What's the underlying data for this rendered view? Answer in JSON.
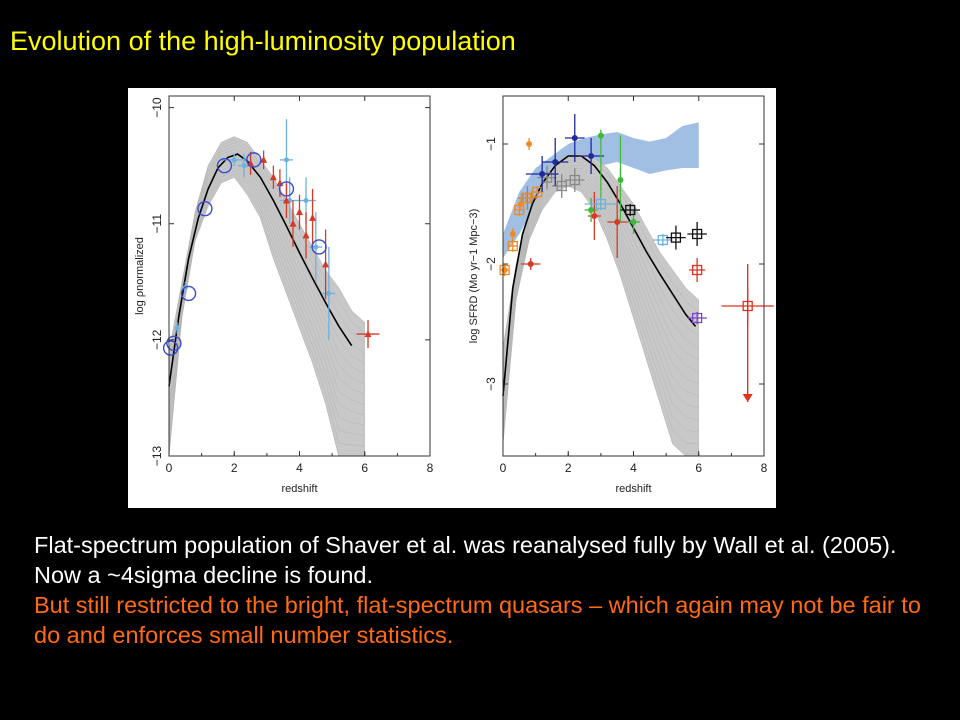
{
  "slide": {
    "title": "Evolution of the high-luminosity population",
    "caption_white": "Flat-spectrum population of Shaver et al. was reanalysed fully by Wall et al. (2005). Now a ~4sigma decline is found.",
    "caption_orange": "But still restricted to the bright, flat-spectrum quasars – which again may not be fair to do and enforces small number statistics."
  },
  "chart_data": [
    {
      "type": "line",
      "xlabel": "redshift",
      "ylabel": "log ρnormalized",
      "xlim": [
        0,
        8
      ],
      "ylim": [
        -13,
        -9.9
      ],
      "xticks": [
        "0",
        "2",
        "4",
        "6",
        "8"
      ],
      "yticks": [
        "−10",
        "−11",
        "−12",
        "−13"
      ],
      "ytick_values": [
        -10,
        -11,
        -12,
        -13
      ],
      "colors": {
        "model": "#000000",
        "band": "#c8c8c8",
        "circles": "#3b4bd0",
        "red": "#d43a28",
        "lightblue": "#6bb2df"
      },
      "band_upper": {
        "x": [
          0,
          0.4,
          0.8,
          1.2,
          1.6,
          2.0,
          2.4,
          2.8,
          3.2,
          3.6,
          4.0,
          4.4,
          4.8,
          5.2,
          5.6,
          6.0
        ],
        "y": [
          -12.1,
          -11.5,
          -10.9,
          -10.5,
          -10.3,
          -10.25,
          -10.3,
          -10.45,
          -10.6,
          -10.8,
          -11.0,
          -11.2,
          -11.4,
          -11.55,
          -11.75,
          -11.85
        ]
      },
      "band_lower": {
        "x": [
          0,
          0.4,
          0.8,
          1.2,
          1.6,
          2.0,
          2.4,
          2.8,
          3.2,
          3.6,
          4.0,
          4.4,
          4.8,
          5.2,
          5.6,
          6.0
        ],
        "y": [
          -13.0,
          -11.8,
          -11.15,
          -10.85,
          -10.65,
          -10.6,
          -10.75,
          -10.95,
          -11.3,
          -11.6,
          -11.9,
          -12.2,
          -12.55,
          -13.0,
          -13.0,
          -13.0
        ]
      },
      "series": [
        {
          "name": "",
          "x": [
            0,
            0.3,
            0.6,
            0.9,
            1.2,
            1.5,
            1.8,
            2.1,
            2.4,
            2.8,
            3.2,
            3.6,
            4.0,
            4.4,
            4.8,
            5.2,
            5.6
          ],
          "y": [
            -12.4,
            -11.8,
            -11.3,
            -10.95,
            -10.7,
            -10.52,
            -10.43,
            -10.4,
            -10.46,
            -10.6,
            -10.8,
            -11.02,
            -11.25,
            -11.47,
            -11.68,
            -11.88,
            -12.05
          ]
        }
      ],
      "circles": {
        "x": [
          0.05,
          0.15,
          0.6,
          1.1,
          1.7,
          2.6,
          3.6,
          4.6
        ],
        "y": [
          -12.07,
          -12.03,
          -11.6,
          -10.87,
          -10.5,
          -10.45,
          -10.7,
          -11.2
        ]
      },
      "red_points": {
        "x": [
          2.5,
          2.9,
          3.2,
          3.4,
          3.6,
          3.8,
          4.0,
          4.2,
          4.4,
          4.8,
          6.1
        ],
        "y": [
          -10.48,
          -10.45,
          -10.6,
          -10.65,
          -10.8,
          -11.0,
          -10.9,
          -11.1,
          -10.95,
          -11.35,
          -11.95
        ],
        "yerr": [
          0.1,
          0.08,
          0.1,
          0.12,
          0.15,
          0.2,
          0.15,
          0.2,
          0.25,
          0.3,
          0.12
        ],
        "xerr": [
          0,
          0,
          0,
          0,
          0,
          0,
          0,
          0,
          0,
          0,
          0.35
        ]
      },
      "lightblue_points": {
        "x": [
          0.25,
          0.5,
          2.0,
          2.3,
          3.6,
          3.7,
          4.2,
          4.5,
          4.9
        ],
        "y": [
          -11.9,
          -11.55,
          -10.45,
          -10.5,
          -10.45,
          -10.8,
          -10.8,
          -11.2,
          -11.6
        ],
        "yerr": [
          0.05,
          0.05,
          0.05,
          0.1,
          0.35,
          0.2,
          0.2,
          0.3,
          0.4
        ],
        "xerr": [
          0,
          0,
          0.4,
          0.2,
          0.2,
          0.3,
          0.3,
          0.2,
          0.2
        ]
      }
    },
    {
      "type": "line",
      "xlabel": "redshift",
      "ylabel": "log SFRD (Mo yr−1 Mpc−3)",
      "xlim": [
        0,
        8
      ],
      "ylim": [
        -3.6,
        -0.6
      ],
      "xticks": [
        "0",
        "2",
        "4",
        "6",
        "8"
      ],
      "yticks": [
        "−1",
        "−2",
        "−3"
      ],
      "ytick_values": [
        -1,
        -2,
        -3
      ],
      "colors": {
        "model": "#000000",
        "band": "#c8c8c8",
        "blueband": "#8fb4de",
        "orange": "#f08a24",
        "red": "#d43a28",
        "darkblue": "#1f2a9c",
        "green": "#3fb83a",
        "black": "#111111",
        "lightblue": "#6bb2df",
        "purple": "#7a45c8",
        "crimson": "#e0321e"
      },
      "blue_band_upper": {
        "x": [
          0,
          0.5,
          1.0,
          1.5,
          2.0,
          2.5,
          3.0,
          3.5,
          4.0,
          4.5,
          5.0,
          5.5,
          6.0
        ],
        "y": [
          -1.75,
          -1.4,
          -1.2,
          -1.1,
          -1.0,
          -0.95,
          -0.92,
          -0.9,
          -0.95,
          -0.98,
          -0.95,
          -0.85,
          -0.82
        ]
      },
      "blue_band_lower": {
        "x": [
          0,
          0.5,
          1.0,
          1.5,
          2.0,
          2.5,
          3.0,
          3.5,
          4.0,
          4.5,
          5.0,
          5.5,
          6.0
        ],
        "y": [
          -1.95,
          -1.75,
          -1.5,
          -1.35,
          -1.25,
          -1.2,
          -1.18,
          -1.15,
          -1.2,
          -1.25,
          -1.22,
          -1.2,
          -1.2
        ]
      },
      "band_upper": {
        "x": [
          0,
          0.4,
          0.8,
          1.2,
          1.6,
          2.0,
          2.4,
          2.8,
          3.2,
          3.6,
          4.0,
          4.4,
          4.8,
          5.2,
          5.6,
          6.0
        ],
        "y": [
          -2.7,
          -2.0,
          -1.55,
          -1.3,
          -1.15,
          -1.1,
          -1.08,
          -1.12,
          -1.2,
          -1.35,
          -1.5,
          -1.7,
          -1.9,
          -2.05,
          -2.2,
          -2.3
        ]
      },
      "band_lower": {
        "x": [
          0,
          0.4,
          0.8,
          1.2,
          1.6,
          2.0,
          2.4,
          2.8,
          3.2,
          3.6,
          4.0,
          4.4,
          4.8,
          5.2,
          5.6,
          6.0
        ],
        "y": [
          -3.5,
          -2.3,
          -1.8,
          -1.55,
          -1.4,
          -1.35,
          -1.4,
          -1.55,
          -1.8,
          -2.1,
          -2.45,
          -2.8,
          -3.15,
          -3.5,
          -3.6,
          -3.6
        ]
      },
      "series": [
        {
          "name": "",
          "x": [
            0,
            0.3,
            0.6,
            0.9,
            1.2,
            1.6,
            2.0,
            2.4,
            2.8,
            3.2,
            3.6,
            4.0,
            4.4,
            4.8,
            5.2,
            5.6,
            5.9
          ],
          "y": [
            -3.1,
            -2.2,
            -1.75,
            -1.5,
            -1.33,
            -1.18,
            -1.1,
            -1.1,
            -1.18,
            -1.32,
            -1.5,
            -1.7,
            -1.9,
            -2.08,
            -2.25,
            -2.42,
            -2.52
          ]
        }
      ],
      "orange_points": {
        "x": [
          0.05,
          0.3,
          0.55,
          0.8
        ],
        "y": [
          -2.05,
          -1.75,
          -1.5,
          -1.0
        ],
        "yerr": [
          0.05,
          0.05,
          0.05,
          0.05
        ]
      },
      "red_points": {
        "x": [
          0.85,
          2.8,
          3.5
        ],
        "y": [
          -2.0,
          -1.6,
          -1.65
        ],
        "xerr": [
          0.3,
          0.2,
          0.3
        ],
        "yerr": [
          0.05,
          0.2,
          0.3
        ]
      },
      "darkblue_points": {
        "x": [
          1.2,
          1.6,
          2.2,
          2.7
        ],
        "y": [
          -1.25,
          -1.15,
          -0.95,
          -1.1
        ],
        "xerr": [
          0.5,
          0.4,
          0.3,
          0.4
        ],
        "yerr": [
          0.15,
          0.2,
          0.2,
          0.15
        ]
      },
      "green_points": {
        "x": [
          2.7,
          3.0,
          3.6,
          4.0
        ],
        "y": [
          -1.55,
          -0.93,
          -1.3,
          -1.65
        ],
        "yerr": [
          0.1,
          0.05,
          0.1,
          0.1
        ],
        "xerr": [
          0.2,
          0,
          0,
          0.2
        ]
      },
      "squares_orange": {
        "x": [
          0.05,
          0.3,
          0.5,
          0.7,
          1.05
        ],
        "y": [
          -2.05,
          -1.85,
          -1.55,
          -1.45,
          -1.4
        ],
        "xerr": [
          0.15,
          0.15,
          0.15,
          0.2,
          0.2
        ],
        "yerr": [
          0.05,
          0.05,
          0.05,
          0.05,
          0.05
        ]
      },
      "squares_grey": {
        "x": [
          0.75,
          1.35,
          1.8,
          2.2
        ],
        "y": [
          -1.45,
          -1.28,
          -1.35,
          -1.3
        ],
        "xerr": [
          0.3,
          0.3,
          0.3,
          0.3
        ],
        "yerr": [
          0.1,
          0.1,
          0.1,
          0.1
        ]
      },
      "squares_lightblue": {
        "x": [
          3.0,
          4.9
        ],
        "y": [
          -1.5,
          -1.8
        ],
        "xerr": [
          0.5,
          0.3
        ],
        "yerr": [
          0.05,
          0.05
        ]
      },
      "squares_black": {
        "x": [
          3.9,
          5.3,
          5.95
        ],
        "y": [
          -1.55,
          -1.78,
          -1.75
        ],
        "xerr": [
          0.3,
          0.3,
          0.3
        ],
        "yerr": [
          0.05,
          0.1,
          0.1
        ]
      },
      "squares_crimson": {
        "x": [
          5.95,
          7.5
        ],
        "y": [
          -2.05,
          -2.35
        ],
        "xerr": [
          0.25,
          0.8
        ],
        "yerr": [
          0.1,
          0.15
        ]
      },
      "square_purple": {
        "x": [
          5.95
        ],
        "y": [
          -2.45
        ],
        "xerr": [
          0.3
        ],
        "yerr": [
          0.05
        ]
      },
      "upper_limit": {
        "x": 7.5,
        "y_top": -2.0,
        "y_bottom": -3.15
      }
    }
  ]
}
